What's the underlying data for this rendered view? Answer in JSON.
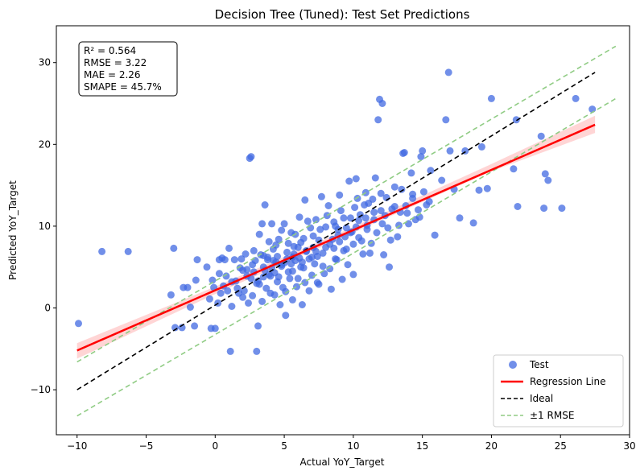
{
  "chart_data": {
    "type": "scatter",
    "title": "Decision Tree (Tuned): Test Set Predictions",
    "xlabel": "Actual YoY_Target",
    "ylabel": "Predicted YoY_Target",
    "xlim": [
      -11.5,
      30
    ],
    "ylim": [
      -15.5,
      34.5
    ],
    "xticks": [
      -10,
      -5,
      0,
      5,
      10,
      15,
      20,
      25,
      30
    ],
    "yticks": [
      -10,
      0,
      10,
      20,
      30
    ],
    "xtick_labels": [
      "−10",
      "−5",
      "0",
      "5",
      "10",
      "15",
      "20",
      "25",
      "30"
    ],
    "ytick_labels": [
      "−10",
      "0",
      "10",
      "20",
      "30"
    ],
    "grid": false,
    "legend_position": "bottom-right",
    "stats": [
      "R² = 0.564",
      "RMSE = 3.22",
      "MAE = 2.26",
      "SMAPE = 45.7%"
    ],
    "colors": {
      "test": "#4169e1",
      "regression": "#ff0000",
      "ci_band": "#ffb3b3",
      "ideal": "#000000",
      "rmse": "#90cc84"
    },
    "series": [
      {
        "name": "Test",
        "kind": "scatter",
        "points": [
          [
            -9.9,
            -1.9
          ],
          [
            -8.2,
            6.9
          ],
          [
            -6.3,
            6.9
          ],
          [
            -3.2,
            1.6
          ],
          [
            -3.0,
            7.3
          ],
          [
            -2.9,
            -2.4
          ],
          [
            -2.4,
            -2.4
          ],
          [
            -2.3,
            2.5
          ],
          [
            -2.0,
            2.5
          ],
          [
            -1.8,
            0.1
          ],
          [
            -1.5,
            -2.2
          ],
          [
            -1.4,
            3.4
          ],
          [
            -1.3,
            5.9
          ],
          [
            -0.6,
            5.0
          ],
          [
            -0.4,
            1.1
          ],
          [
            -0.3,
            -2.5
          ],
          [
            -0.2,
            3.4
          ],
          [
            0.0,
            -2.5
          ],
          [
            -0.1,
            2.5
          ],
          [
            0.2,
            0.6
          ],
          [
            0.3,
            4.2
          ],
          [
            0.4,
            1.8
          ],
          [
            0.5,
            6.1
          ],
          [
            0.6,
            2.7
          ],
          [
            0.8,
            3.9
          ],
          [
            1.0,
            7.3
          ],
          [
            1.1,
            -5.3
          ],
          [
            1.2,
            0.2
          ],
          [
            1.4,
            5.9
          ],
          [
            1.6,
            2.4
          ],
          [
            1.8,
            4.9
          ],
          [
            2.0,
            1.3
          ],
          [
            2.2,
            6.6
          ],
          [
            2.3,
            3.9
          ],
          [
            2.4,
            0.6
          ],
          [
            2.5,
            18.3
          ],
          [
            2.6,
            18.5
          ],
          [
            2.7,
            5.3
          ],
          [
            2.8,
            7.0
          ],
          [
            3.0,
            3.0
          ],
          [
            3.0,
            -5.3
          ],
          [
            3.1,
            -2.2
          ],
          [
            3.2,
            9.0
          ],
          [
            3.4,
            10.3
          ],
          [
            3.5,
            5.0
          ],
          [
            3.6,
            12.6
          ],
          [
            3.8,
            6.2
          ],
          [
            3.9,
            4.1
          ],
          [
            4.0,
            1.8
          ],
          [
            4.1,
            10.3
          ],
          [
            4.2,
            7.2
          ],
          [
            4.4,
            5.6
          ],
          [
            4.5,
            3.2
          ],
          [
            4.6,
            8.4
          ],
          [
            4.7,
            0.4
          ],
          [
            4.8,
            5.1
          ],
          [
            4.9,
            2.5
          ],
          [
            5.0,
            10.3
          ],
          [
            5.1,
            -0.9
          ],
          [
            5.2,
            6.8
          ],
          [
            5.3,
            4.4
          ],
          [
            5.5,
            9.2
          ],
          [
            5.6,
            1.0
          ],
          [
            5.7,
            7.5
          ],
          [
            5.8,
            5.8
          ],
          [
            6.0,
            3.6
          ],
          [
            6.1,
            11.1
          ],
          [
            6.2,
            8.0
          ],
          [
            6.3,
            0.4
          ],
          [
            6.4,
            4.9
          ],
          [
            6.5,
            13.2
          ],
          [
            6.6,
            7.0
          ],
          [
            6.8,
            2.1
          ],
          [
            6.9,
            9.8
          ],
          [
            7.0,
            6.2
          ],
          [
            7.2,
            5.4
          ],
          [
            7.3,
            10.8
          ],
          [
            7.4,
            3.1
          ],
          [
            7.5,
            8.3
          ],
          [
            7.7,
            13.6
          ],
          [
            7.8,
            6.7
          ],
          [
            7.9,
            4.2
          ],
          [
            8.0,
            9.9
          ],
          [
            8.2,
            12.5
          ],
          [
            8.3,
            7.8
          ],
          [
            8.4,
            2.3
          ],
          [
            8.6,
            10.5
          ],
          [
            8.7,
            6.0
          ],
          [
            8.9,
            8.9
          ],
          [
            9.0,
            13.8
          ],
          [
            9.2,
            3.5
          ],
          [
            9.3,
            11.0
          ],
          [
            9.5,
            7.2
          ],
          [
            9.7,
            15.5
          ],
          [
            9.8,
            9.2
          ],
          [
            10.0,
            4.1
          ],
          [
            10.1,
            12.3
          ],
          [
            10.2,
            15.8
          ],
          [
            10.4,
            8.6
          ],
          [
            10.5,
            11.4
          ],
          [
            10.7,
            6.6
          ],
          [
            10.9,
            14.1
          ],
          [
            11.0,
            9.6
          ],
          [
            11.1,
            12.8
          ],
          [
            11.3,
            7.9
          ],
          [
            11.5,
            10.8
          ],
          [
            11.6,
            15.9
          ],
          [
            11.8,
            23.0
          ],
          [
            11.9,
            25.5
          ],
          [
            12.0,
            11.9
          ],
          [
            12.1,
            25.0
          ],
          [
            12.2,
            6.5
          ],
          [
            12.4,
            13.5
          ],
          [
            12.5,
            9.8
          ],
          [
            12.6,
            5.0
          ],
          [
            12.8,
            12.1
          ],
          [
            13.0,
            14.8
          ],
          [
            13.2,
            8.7
          ],
          [
            13.4,
            11.7
          ],
          [
            13.6,
            18.9
          ],
          [
            13.7,
            19.0
          ],
          [
            13.8,
            12.5
          ],
          [
            14.0,
            10.3
          ],
          [
            14.2,
            16.5
          ],
          [
            14.3,
            13.4
          ],
          [
            14.5,
            10.8
          ],
          [
            14.7,
            12.0
          ],
          [
            14.9,
            18.5
          ],
          [
            15.0,
            19.2
          ],
          [
            15.3,
            12.6
          ],
          [
            15.6,
            16.8
          ],
          [
            15.9,
            8.9
          ],
          [
            16.4,
            15.6
          ],
          [
            16.7,
            23.0
          ],
          [
            16.9,
            28.8
          ],
          [
            17.0,
            19.2
          ],
          [
            17.3,
            14.5
          ],
          [
            17.7,
            11.0
          ],
          [
            18.1,
            19.2
          ],
          [
            18.7,
            10.4
          ],
          [
            19.1,
            14.4
          ],
          [
            19.3,
            19.7
          ],
          [
            19.7,
            14.6
          ],
          [
            20.0,
            25.6
          ],
          [
            21.6,
            17.0
          ],
          [
            21.8,
            23.0
          ],
          [
            21.9,
            12.4
          ],
          [
            23.6,
            21.0
          ],
          [
            23.8,
            12.2
          ],
          [
            23.9,
            16.4
          ],
          [
            24.1,
            15.6
          ],
          [
            25.1,
            12.2
          ],
          [
            26.1,
            25.6
          ],
          [
            27.3,
            24.3
          ],
          [
            0.3,
            5.9
          ],
          [
            0.7,
            5.9
          ],
          [
            1.5,
            3.3
          ],
          [
            1.9,
            6.0
          ],
          [
            2.1,
            2.1
          ],
          [
            2.3,
            4.7
          ],
          [
            2.7,
            1.5
          ],
          [
            2.9,
            5.8
          ],
          [
            3.1,
            3.3
          ],
          [
            3.3,
            6.5
          ],
          [
            3.4,
            0.8
          ],
          [
            3.6,
            4.6
          ],
          [
            3.7,
            2.4
          ],
          [
            3.9,
            8.1
          ],
          [
            4.1,
            4.9
          ],
          [
            4.3,
            1.6
          ],
          [
            4.4,
            7.7
          ],
          [
            4.6,
            3.8
          ],
          [
            4.8,
            9.5
          ],
          [
            5.0,
            5.5
          ],
          [
            5.1,
            2.0
          ],
          [
            5.3,
            7.9
          ],
          [
            5.4,
            3.6
          ],
          [
            5.6,
            6.2
          ],
          [
            5.8,
            9.0
          ],
          [
            5.9,
            2.6
          ],
          [
            6.0,
            7.4
          ],
          [
            6.2,
            5.0
          ],
          [
            6.4,
            8.5
          ],
          [
            6.5,
            3.1
          ],
          [
            6.7,
            10.6
          ],
          [
            6.8,
            6.0
          ],
          [
            7.0,
            4.0
          ],
          [
            7.1,
            8.8
          ],
          [
            7.3,
            6.9
          ],
          [
            7.5,
            2.9
          ],
          [
            7.6,
            9.6
          ],
          [
            7.8,
            5.1
          ],
          [
            8.0,
            7.4
          ],
          [
            8.1,
            11.3
          ],
          [
            8.3,
            4.8
          ],
          [
            8.5,
            8.4
          ],
          [
            8.7,
            10.0
          ],
          [
            8.8,
            5.9
          ],
          [
            9.0,
            8.1
          ],
          [
            9.1,
            11.9
          ],
          [
            9.3,
            7.0
          ],
          [
            9.5,
            9.8
          ],
          [
            9.6,
            5.3
          ],
          [
            9.8,
            11.0
          ],
          [
            10.0,
            7.8
          ],
          [
            10.2,
            9.9
          ],
          [
            10.3,
            13.4
          ],
          [
            10.6,
            8.2
          ],
          [
            10.8,
            12.6
          ],
          [
            11.0,
            10.1
          ],
          [
            11.2,
            6.7
          ],
          [
            11.4,
            13.3
          ],
          [
            11.7,
            9.2
          ],
          [
            12.0,
            14.0
          ],
          [
            12.3,
            11.3
          ],
          [
            12.7,
            8.3
          ],
          [
            13.0,
            12.4
          ],
          [
            13.3,
            10.1
          ],
          [
            13.5,
            14.5
          ],
          [
            13.9,
            11.6
          ],
          [
            14.3,
            13.9
          ],
          [
            14.8,
            11.1
          ],
          [
            15.1,
            14.2
          ],
          [
            15.5,
            13.0
          ],
          [
            4.2,
            5.8
          ],
          [
            4.5,
            6.3
          ],
          [
            4.8,
            5.3
          ],
          [
            5.2,
            6.0
          ],
          [
            5.5,
            5.4
          ],
          [
            5.7,
            6.6
          ],
          [
            6.1,
            6.1
          ],
          [
            6.3,
            5.6
          ],
          [
            3.8,
            5.9
          ],
          [
            3.5,
            6.4
          ],
          [
            4.0,
            3.9
          ],
          [
            4.3,
            4.3
          ],
          [
            5.6,
            4.5
          ],
          [
            6.6,
            6.9
          ],
          [
            7.1,
            7.4
          ],
          [
            7.4,
            6.3
          ],
          [
            2.6,
            3.6
          ],
          [
            2.8,
            4.4
          ],
          [
            3.2,
            2.9
          ],
          [
            3.5,
            3.8
          ],
          [
            2.0,
            4.6
          ],
          [
            1.7,
            1.8
          ],
          [
            1.2,
            3.2
          ],
          [
            0.9,
            2.1
          ],
          [
            8.6,
            7.3
          ],
          [
            8.9,
            9.6
          ],
          [
            9.4,
            8.7
          ],
          [
            9.9,
            9.3
          ],
          [
            10.4,
            10.7
          ],
          [
            10.9,
            11.0
          ],
          [
            11.5,
            11.7
          ],
          [
            12.1,
            10.3
          ]
        ]
      },
      {
        "name": "Regression Line",
        "kind": "line",
        "x": [
          -10,
          27.5
        ],
        "y": [
          -5.2,
          22.4
        ]
      },
      {
        "name": "Ideal",
        "kind": "line",
        "x": [
          -10,
          27.5
        ],
        "y": [
          -10,
          28.8
        ]
      },
      {
        "name": "±1 RMSE",
        "kind": "band-lines",
        "x": [
          -10,
          29
        ],
        "upper": [
          -6.6,
          32.0
        ],
        "lower": [
          -13.2,
          25.6
        ]
      }
    ],
    "regression_ci": {
      "x": [
        -10,
        0,
        10,
        20,
        27.5
      ],
      "lower": [
        -6.2,
        1.7,
        9.2,
        16.7,
        21.4
      ],
      "upper": [
        -4.3,
        2.6,
        9.9,
        17.6,
        23.5
      ]
    }
  }
}
